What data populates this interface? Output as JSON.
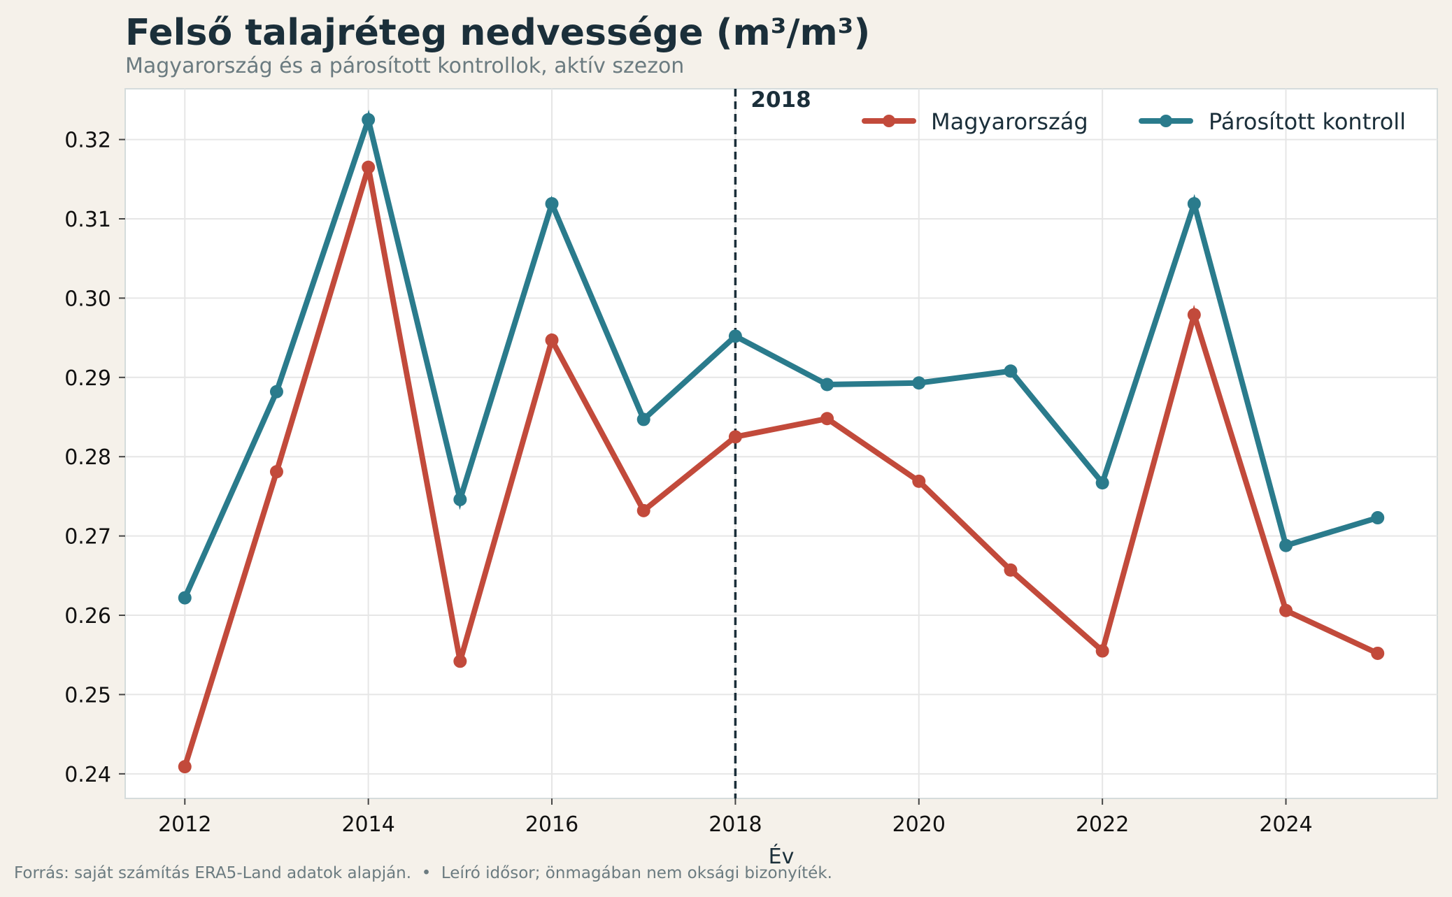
{
  "chart_data": {
    "type": "line",
    "title": "Felső talajréteg nedvessége (m³/m³)",
    "subtitle": "Magyarország és a párosított kontrollok, aktív szezon",
    "xlabel": "Év",
    "ylabel": "",
    "footer": "Forrás: saját számítás ERA5-Land adatok alapján.  •  Leíró idősor; önmagában nem oksági bizonyíték.",
    "xlim": [
      2011.35,
      2025.65
    ],
    "ylim": [
      0.2369,
      0.3264
    ],
    "x_ticks": [
      2012,
      2014,
      2016,
      2018,
      2020,
      2022,
      2024
    ],
    "y_ticks": [
      0.24,
      0.25,
      0.26,
      0.27,
      0.28,
      0.29,
      0.3,
      0.31,
      0.32
    ],
    "y_tick_labels": [
      "0.24",
      "0.25",
      "0.26",
      "0.27",
      "0.28",
      "0.29",
      "0.30",
      "0.31",
      "0.32"
    ],
    "grid": true,
    "legend_position": "top-right",
    "reference_line": {
      "x": 2018,
      "label": "2018",
      "color": "#1b2f3a"
    },
    "x": [
      2012,
      2013,
      2014,
      2015,
      2016,
      2017,
      2018,
      2019,
      2020,
      2021,
      2022,
      2023,
      2024,
      2025
    ],
    "series": [
      {
        "name": "Magyarország",
        "color": "#c24a3b",
        "values": [
          0.2409,
          0.2781,
          0.3165,
          0.2542,
          0.2947,
          0.2732,
          0.2825,
          0.2848,
          0.2769,
          0.2657,
          0.2555,
          0.2979,
          0.2606,
          0.2552
        ]
      },
      {
        "name": "Párosított kontroll",
        "color": "#2a7b8c",
        "values": [
          0.2622,
          0.2882,
          0.3225,
          0.2746,
          0.3119,
          0.2847,
          0.2952,
          0.2891,
          0.2893,
          0.2908,
          0.2767,
          0.3119,
          0.2688,
          0.2723
        ]
      }
    ]
  }
}
